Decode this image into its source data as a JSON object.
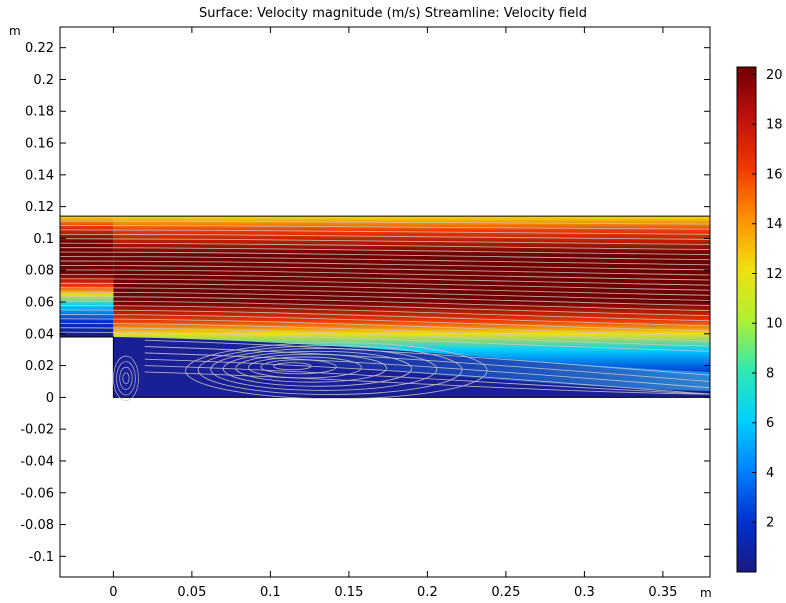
{
  "chart_data": {
    "type": "heatmap",
    "title": "Surface: Velocity magnitude (m/s)  Streamline: Velocity field",
    "x_unit": "m",
    "y_unit": "m",
    "xlim": [
      -0.034,
      0.38
    ],
    "ylim": [
      -0.113,
      0.233
    ],
    "x_ticks": [
      "0",
      "0.05",
      "0.1",
      "0.15",
      "0.2",
      "0.25",
      "0.3",
      "0.35"
    ],
    "x_tick_values": [
      0,
      0.05,
      0.1,
      0.15,
      0.2,
      0.25,
      0.3,
      0.35
    ],
    "y_ticks": [
      "0.22",
      "0.2",
      "0.18",
      "0.16",
      "0.14",
      "0.12",
      "0.1",
      "0.08",
      "0.06",
      "0.04",
      "0.02",
      "0",
      "-0.02",
      "-0.04",
      "-0.06",
      "-0.08",
      "-0.1"
    ],
    "y_tick_values": [
      0.22,
      0.2,
      0.18,
      0.16,
      0.14,
      0.12,
      0.1,
      0.08,
      0.06,
      0.04,
      0.02,
      0,
      -0.02,
      -0.04,
      -0.06,
      -0.08,
      -0.1
    ],
    "colorbar": {
      "min": 0,
      "max": 20.3,
      "ticks": [
        "20",
        "18",
        "16",
        "14",
        "12",
        "10",
        "8",
        "6",
        "4",
        "2"
      ],
      "tick_values": [
        20,
        18,
        16,
        14,
        12,
        10,
        8,
        6,
        4,
        2
      ],
      "colormap": [
        "#1a1a80",
        "#0030d0",
        "#0080ff",
        "#00d0ff",
        "#30e8b0",
        "#b0f030",
        "#f0e010",
        "#ff9000",
        "#f03800",
        "#c01010",
        "#700000"
      ]
    },
    "domain": {
      "inlet_channel": {
        "x": [
          -0.034,
          0.0
        ],
        "y": [
          0.038,
          0.114
        ]
      },
      "step_region": {
        "x": [
          0.0,
          0.38
        ],
        "y": [
          0.0,
          0.114
        ]
      },
      "step_height": 0.038
    },
    "velocity_profile": [
      {
        "y": 0.114,
        "v": 12
      },
      {
        "y": 0.105,
        "v": 17
      },
      {
        "y": 0.09,
        "v": 19.5
      },
      {
        "y": 0.075,
        "v": 20.3
      },
      {
        "y": 0.06,
        "v": 19.5
      },
      {
        "y": 0.048,
        "v": 17
      },
      {
        "y": 0.04,
        "v": 12
      },
      {
        "y": 0.03,
        "v": 6
      },
      {
        "y": 0.015,
        "v": 1.5
      },
      {
        "y": 0.0,
        "v": 0.3
      }
    ],
    "streamline_color": "#c8c8c8"
  }
}
